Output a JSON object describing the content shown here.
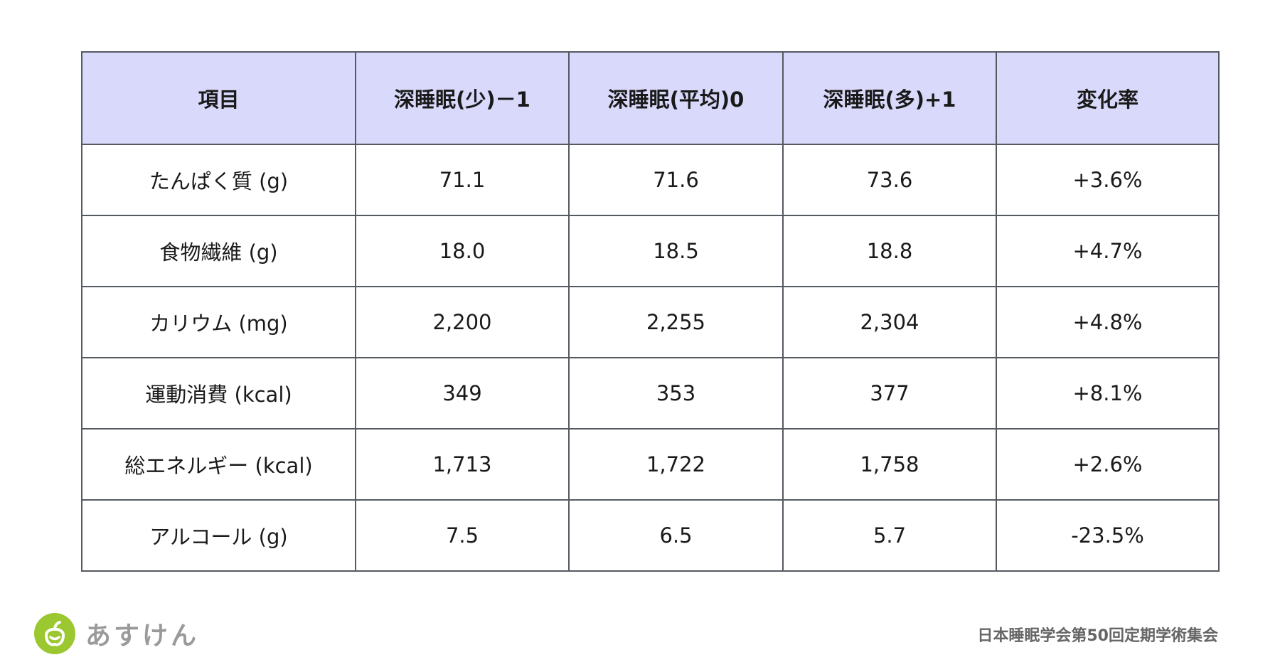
{
  "table": {
    "header": [
      "項目",
      "深睡眠(少)－1",
      "深睡眠(平均)0",
      "深睡眠(多)+1",
      "変化率"
    ],
    "rows": [
      [
        "たんぱく質 (g)",
        "71.1",
        "71.6",
        "73.6",
        "+3.6%"
      ],
      [
        "食物繊維 (g)",
        "18.0",
        "18.5",
        "18.8",
        "+4.7%"
      ],
      [
        "カリウム (mg)",
        "2,200",
        "2,255",
        "2,304",
        "+4.8%"
      ],
      [
        "運動消費 (kcal)",
        "349",
        "353",
        "377",
        "+8.1%"
      ],
      [
        "総エネルギー (kcal)",
        "1,713",
        "1,722",
        "1,758",
        "+2.6%"
      ],
      [
        "アルコール (g)",
        "7.5",
        "6.5",
        "5.7",
        "-23.5%"
      ]
    ]
  },
  "footer": {
    "brand": "あすけん",
    "source": "日本睡眠学会第50回定期学術集会"
  }
}
